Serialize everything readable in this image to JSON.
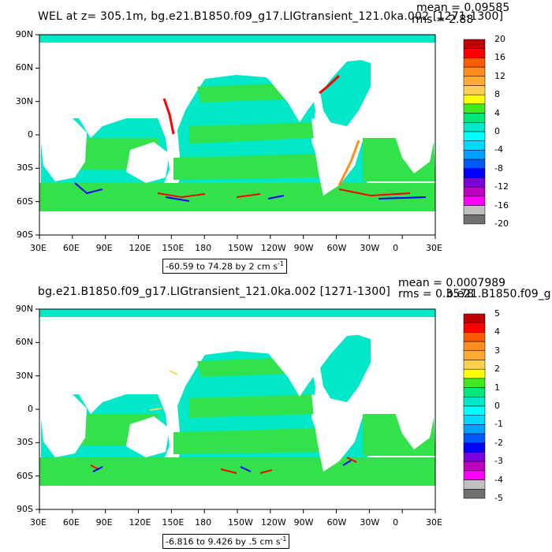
{
  "colors": {
    "ocean_base": "#00e8c8",
    "ocean_green": "#33e24a",
    "land": "#ffffff",
    "axis": "#000000"
  },
  "panels": [
    {
      "id": "top",
      "title": "WEL at z= 305.1m, bg.e21.B1850.f09_g17.LIGtransient_121.0ka.002 [1271-1300]",
      "mean": "mean = 0.09585",
      "rms": "rms = 2.88",
      "range_label": "-60.59 to 74.28 by 2 cm s",
      "range_unit_sup": "-1",
      "lat_ticks": [
        "90N",
        "60N",
        "30N",
        "0",
        "30S",
        "60S",
        "90S"
      ],
      "lon_ticks": [
        "30E",
        "60E",
        "90E",
        "120E",
        "150E",
        "180",
        "150W",
        "120W",
        "90W",
        "60W",
        "30W",
        "0",
        "30E"
      ],
      "colorbar": {
        "labels": [
          "20",
          "16",
          "12",
          "8",
          "4",
          "0",
          "-4",
          "-8",
          "-12",
          "-16",
          "-20"
        ],
        "colors": [
          "#c00000",
          "#ff0000",
          "#ff5a00",
          "#ff8c1e",
          "#ffaa32",
          "#ffd050",
          "#ffff00",
          "#40e820",
          "#00e878",
          "#00e8c8",
          "#00ffff",
          "#00d8ff",
          "#00a0ff",
          "#0058ff",
          "#0000ff",
          "#7a00e0",
          "#c000c0",
          "#ff00ff",
          "#c0c0c0",
          "#707070"
        ]
      }
    },
    {
      "id": "bottom",
      "title": "bg.e21.B1850.f09_g17.LIGtransient_121.0ka.002 [1271-1300]",
      "mean": "mean = 0.0007989",
      "rms": "rms = 0.3578",
      "extra_overlap": "b.e21.B1850.f09_g",
      "range_label": "-6.816 to 9.426 by .5 cm s",
      "range_unit_sup": "-1",
      "lat_ticks": [
        "90N",
        "60N",
        "30N",
        "0",
        "30S",
        "60S",
        "90S"
      ],
      "lon_ticks": [
        "30E",
        "60E",
        "90E",
        "120E",
        "150E",
        "180",
        "150W",
        "120W",
        "90W",
        "60W",
        "30W",
        "0",
        "30E"
      ],
      "colorbar": {
        "labels": [
          "5",
          "4",
          "3",
          "2",
          "1",
          "0",
          "-1",
          "-2",
          "-3",
          "-4",
          "-5"
        ],
        "colors": [
          "#c00000",
          "#ff0000",
          "#ff5a00",
          "#ff8c1e",
          "#ffaa32",
          "#ffd050",
          "#ffff00",
          "#40e820",
          "#00e878",
          "#00e8c8",
          "#00ffff",
          "#00d8ff",
          "#00a0ff",
          "#0058ff",
          "#0000ff",
          "#7a00e0",
          "#c000c0",
          "#ff00ff",
          "#c0c0c0",
          "#707070"
        ]
      }
    }
  ]
}
